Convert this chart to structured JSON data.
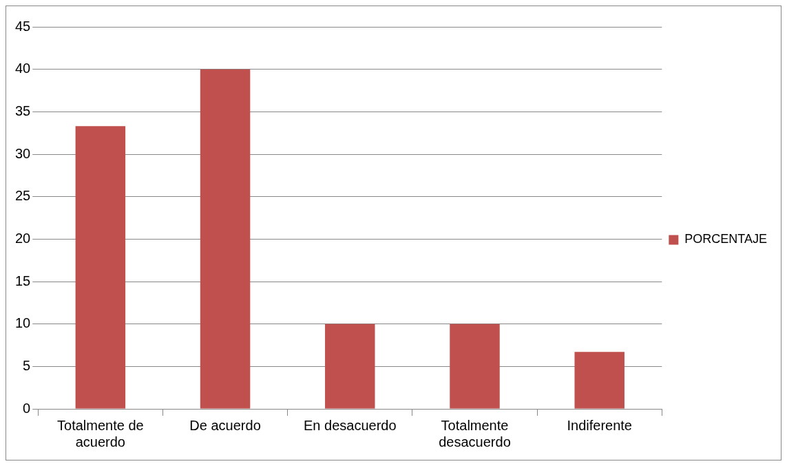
{
  "chart_data": {
    "type": "bar",
    "categories": [
      "Totalmente de acuerdo",
      "De acuerdo",
      "En desacuerdo",
      "Totalmente desacuerdo",
      "Indiferente"
    ],
    "series": [
      {
        "name": "PORCENTAJE",
        "color": "#c0504d",
        "values": [
          33.3,
          40,
          10,
          10,
          6.7
        ]
      }
    ],
    "ylim": [
      0,
      45
    ],
    "yticks": [
      0,
      5,
      10,
      15,
      20,
      25,
      30,
      35,
      40,
      45
    ],
    "grid": "y",
    "legend": "right"
  }
}
